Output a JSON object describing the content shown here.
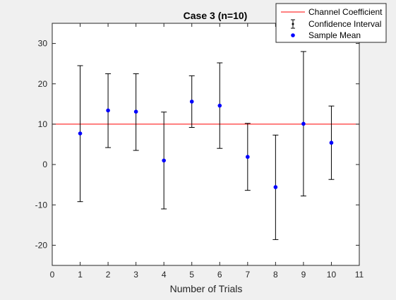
{
  "chart_data": {
    "type": "errorbar",
    "title": "Case 3 (n=10)",
    "xlabel": "Number of Trials",
    "ylabel": "",
    "xlim": [
      0,
      11
    ],
    "ylim": [
      -25,
      35
    ],
    "x_ticks": [
      0,
      1,
      2,
      3,
      4,
      5,
      6,
      7,
      8,
      9,
      10,
      11
    ],
    "y_ticks": [
      -20,
      -10,
      0,
      10,
      20,
      30
    ],
    "grid": false,
    "legend_position": "top-right",
    "reference_line": {
      "name": "Channel Coefficient",
      "y": 10,
      "color": "#ff0000"
    },
    "series": [
      {
        "name": "Sample Mean",
        "color": "#0000ff",
        "x": [
          1,
          2,
          3,
          4,
          5,
          6,
          7,
          8,
          9,
          10
        ],
        "values": [
          7.7,
          13.4,
          13.1,
          1.0,
          15.6,
          14.6,
          1.9,
          -5.6,
          10.1,
          5.4
        ]
      }
    ],
    "confidence_interval": {
      "name": "Confidence Interval",
      "color": "#000000",
      "lower": [
        -9.2,
        4.2,
        3.5,
        -11.0,
        9.2,
        4.0,
        -6.4,
        -18.6,
        -7.8,
        -3.7
      ],
      "upper": [
        24.5,
        22.5,
        22.5,
        13.0,
        22.0,
        25.2,
        10.2,
        7.3,
        28.0,
        14.5
      ]
    },
    "legend": [
      "Channel Coefficient",
      "Confidence Interval",
      "Sample Mean"
    ]
  }
}
